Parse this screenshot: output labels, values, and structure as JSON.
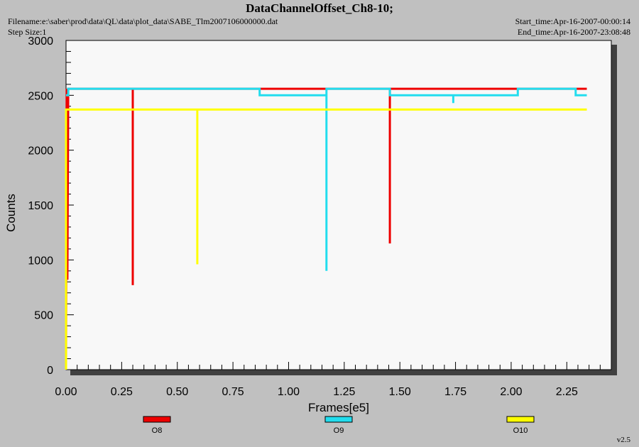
{
  "header": {
    "title": "DataChannelOffset_Ch8-10;",
    "filename": "Filename:e:\\saber\\prod\\data\\QL\\data\\plot_data\\SABE_Tlm2007106000000.dat",
    "step_size": "Step Size:1",
    "start_time": "Start_time:Apr-16-2007-00:00:14",
    "end_time": "End_time:Apr-16-2007-23:08:48",
    "version": "v2.5"
  },
  "colors": {
    "plot_background": "#f8f8f8",
    "page_background": "#c0c0c0",
    "O8": "#ee0000",
    "O9": "#22ddee",
    "O10": "#ffff00"
  },
  "chart_data": {
    "type": "line",
    "title": "DataChannelOffset_Ch8-10;",
    "xlabel": "Frames[e5]",
    "ylabel": "Counts",
    "xlim": [
      0,
      2.45
    ],
    "ylim": [
      0,
      3000
    ],
    "x_ticks": [
      "0.00",
      "0.25",
      "0.50",
      "0.75",
      "1.00",
      "1.25",
      "1.50",
      "1.75",
      "2.00",
      "2.25"
    ],
    "x_tick_values": [
      0,
      0.25,
      0.5,
      0.75,
      1.0,
      1.25,
      1.5,
      1.75,
      2.0,
      2.25
    ],
    "y_ticks": [
      "0",
      "500",
      "1000",
      "1500",
      "2000",
      "2500",
      "3000"
    ],
    "y_tick_values": [
      0,
      500,
      1000,
      1500,
      2000,
      2500,
      3000
    ],
    "grid": false,
    "legend_position": "bottom",
    "series": [
      {
        "name": "O8",
        "color": "#ee0000",
        "x": [
          0.0,
          0.003,
          0.006,
          0.01,
          0.01,
          0.3,
          0.3,
          0.3,
          0.87,
          1.455,
          1.455,
          1.455,
          2.31,
          2.34
        ],
        "y": [
          0,
          2560,
          820,
          2560,
          2560,
          2560,
          770,
          2560,
          2560,
          2560,
          1150,
          2560,
          2560,
          2560
        ]
      },
      {
        "name": "O9",
        "color": "#22ddee",
        "x": [
          0.0,
          0.01,
          0.01,
          0.87,
          0.87,
          1.17,
          1.17,
          1.17,
          1.17,
          1.455,
          1.455,
          1.74,
          1.74,
          1.74,
          2.03,
          2.03,
          2.29,
          2.29,
          2.34
        ],
        "y": [
          2500,
          2500,
          2560,
          2560,
          2500,
          2500,
          900,
          2500,
          2560,
          2560,
          2500,
          2500,
          2430,
          2500,
          2500,
          2560,
          2560,
          2500,
          2500
        ]
      },
      {
        "name": "O10",
        "color": "#ffff00",
        "x": [
          0.0,
          0.0,
          0.0,
          0.59,
          0.59,
          0.59,
          2.34
        ],
        "y": [
          0,
          2370,
          2370,
          2370,
          960,
          2370,
          2370
        ]
      }
    ]
  }
}
